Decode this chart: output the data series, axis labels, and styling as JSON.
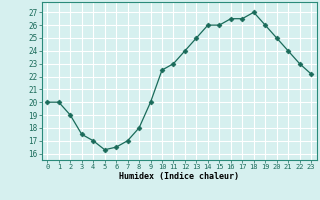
{
  "x": [
    0,
    1,
    2,
    3,
    4,
    5,
    6,
    7,
    8,
    9,
    10,
    11,
    12,
    13,
    14,
    15,
    16,
    17,
    18,
    19,
    20,
    21,
    22,
    23
  ],
  "y": [
    20,
    20,
    19,
    17.5,
    17,
    16.3,
    16.5,
    17,
    18,
    20,
    22.5,
    23,
    24,
    25,
    26,
    26,
    26.5,
    26.5,
    27,
    26,
    25,
    24,
    23,
    22.2
  ],
  "line_color": "#1a6b5a",
  "marker": "D",
  "marker_size": 2.5,
  "bg_color": "#d6f0ef",
  "grid_color": "#ffffff",
  "xlabel": "Humidex (Indice chaleur)",
  "ylabel_ticks": [
    16,
    17,
    18,
    19,
    20,
    21,
    22,
    23,
    24,
    25,
    26,
    27
  ],
  "ylim": [
    15.5,
    27.8
  ],
  "xlim": [
    -0.5,
    23.5
  ],
  "xticks": [
    0,
    1,
    2,
    3,
    4,
    5,
    6,
    7,
    8,
    9,
    10,
    11,
    12,
    13,
    14,
    15,
    16,
    17,
    18,
    19,
    20,
    21,
    22,
    23
  ]
}
